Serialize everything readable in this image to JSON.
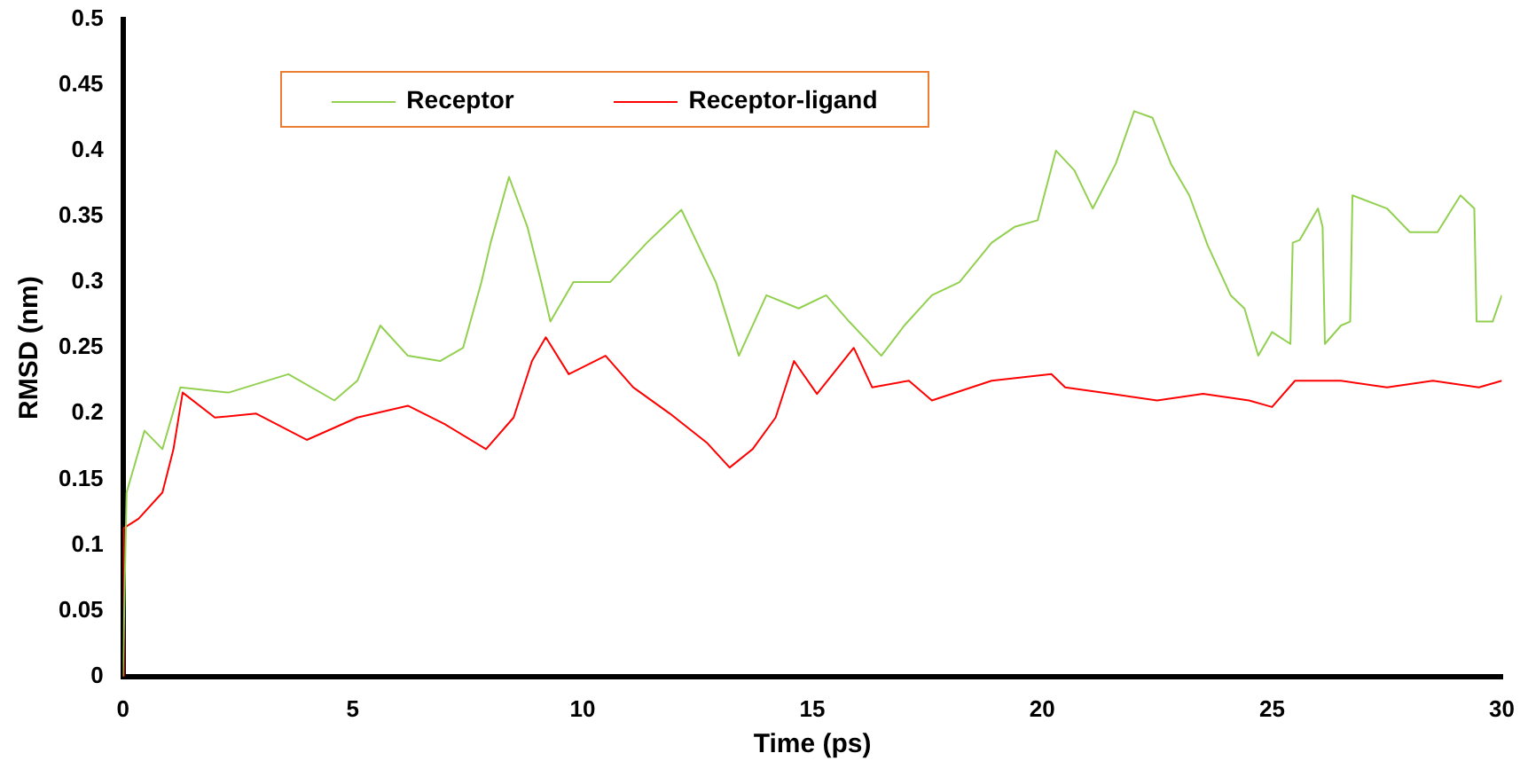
{
  "chart_data": {
    "type": "line",
    "xlabel": "Time (ps)",
    "ylabel": "RMSD (nm)",
    "xlim": [
      0,
      30
    ],
    "xticks": [
      0,
      5,
      10,
      15,
      20,
      25,
      30
    ],
    "ylim": [
      0,
      0.5
    ],
    "yticks": [
      0,
      0.05,
      0.1,
      0.15,
      0.2,
      0.25,
      0.3,
      0.35,
      0.4,
      0.45,
      0.5
    ],
    "grid": false,
    "legend": "top left",
    "marker": "none",
    "line_style": "solid",
    "series": [
      {
        "name": "Receptor",
        "color": "#92d050",
        "x": [
          0,
          0.08,
          0.47,
          0.86,
          1.25,
          2.3,
          3.6,
          4.6,
          5.1,
          5.6,
          6.2,
          6.9,
          7.4,
          7.8,
          8.0,
          8.4,
          8.8,
          9.1,
          9.3,
          9.8,
          10.6,
          11.4,
          12.15,
          12.9,
          13.4,
          14.0,
          14.7,
          15.3,
          15.8,
          16.5,
          17.0,
          17.6,
          18.2,
          18.9,
          19.4,
          19.9,
          20.3,
          20.7,
          21.1,
          21.6,
          22.0,
          22.4,
          22.8,
          23.2,
          23.6,
          24.1,
          24.4,
          24.7,
          25.0,
          25.4,
          25.45,
          25.6,
          26.0,
          26.1,
          26.15,
          26.5,
          26.7,
          26.75,
          27.5,
          28.0,
          28.6,
          29.1,
          29.4,
          29.45,
          29.8,
          30
        ],
        "values": [
          0,
          0.14,
          0.187,
          0.173,
          0.22,
          0.216,
          0.23,
          0.21,
          0.225,
          0.267,
          0.244,
          0.24,
          0.25,
          0.3,
          0.33,
          0.38,
          0.342,
          0.3,
          0.27,
          0.3,
          0.3,
          0.33,
          0.355,
          0.3,
          0.244,
          0.29,
          0.28,
          0.29,
          0.27,
          0.244,
          0.267,
          0.29,
          0.3,
          0.33,
          0.342,
          0.347,
          0.4,
          0.385,
          0.356,
          0.39,
          0.43,
          0.425,
          0.39,
          0.366,
          0.328,
          0.29,
          0.28,
          0.244,
          0.262,
          0.253,
          0.33,
          0.332,
          0.356,
          0.342,
          0.253,
          0.267,
          0.27,
          0.366,
          0.356,
          0.338,
          0.338,
          0.366,
          0.356,
          0.27,
          0.27,
          0.29
        ]
      },
      {
        "name": "Receptor-ligand",
        "color": "#ff0000",
        "x": [
          0,
          0.02,
          0.34,
          0.86,
          1.1,
          1.3,
          2.0,
          2.9,
          4.0,
          5.1,
          6.2,
          7.0,
          7.9,
          8.5,
          8.9,
          9.2,
          9.7,
          10.5,
          11.1,
          11.9,
          12.7,
          13.2,
          13.7,
          14.2,
          14.6,
          15.1,
          15.9,
          16.3,
          17.1,
          17.6,
          18.9,
          20.2,
          20.5,
          21.5,
          22.5,
          23.5,
          24.5,
          25.0,
          25.5,
          26.5,
          27.5,
          28.5,
          29.5,
          30
        ],
        "values": [
          0,
          0.113,
          0.12,
          0.14,
          0.173,
          0.216,
          0.197,
          0.2,
          0.18,
          0.197,
          0.206,
          0.192,
          0.173,
          0.197,
          0.24,
          0.258,
          0.23,
          0.244,
          0.22,
          0.2,
          0.178,
          0.159,
          0.173,
          0.197,
          0.24,
          0.215,
          0.25,
          0.22,
          0.225,
          0.21,
          0.225,
          0.23,
          0.22,
          0.215,
          0.21,
          0.215,
          0.21,
          0.205,
          0.225,
          0.225,
          0.22,
          0.225,
          0.22,
          0.225
        ]
      }
    ]
  }
}
